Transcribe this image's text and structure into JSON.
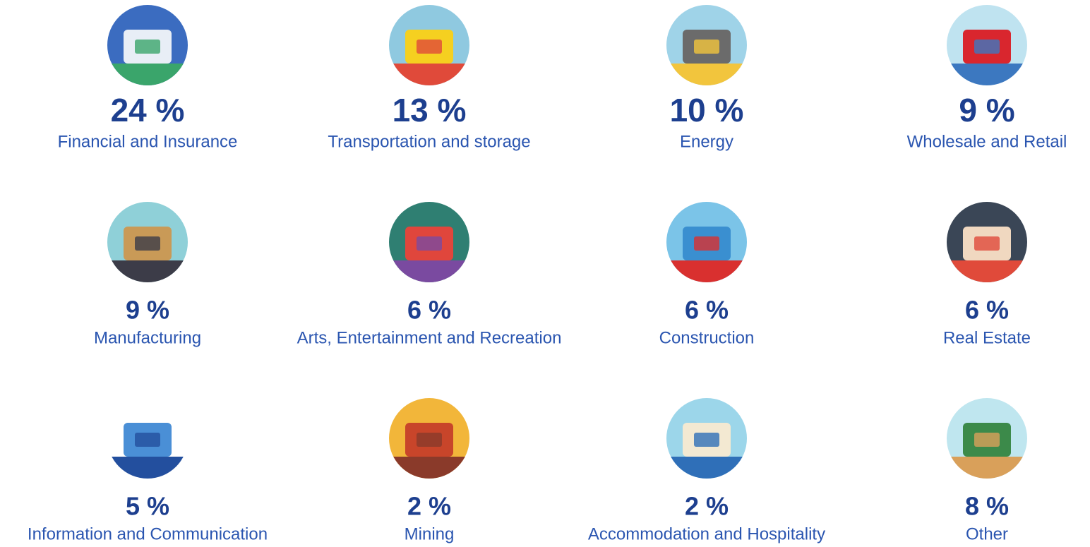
{
  "items": [
    {
      "percent": "24 %",
      "label": "Financial and Insurance"
    },
    {
      "percent": "13 %",
      "label": "Transportation and storage"
    },
    {
      "percent": "10 %",
      "label": "Energy"
    },
    {
      "percent": "9 %",
      "label": "Wholesale and Retail"
    },
    {
      "percent": "9 %",
      "label": "Manufacturing"
    },
    {
      "percent": "6 %",
      "label": "Arts, Entertainment and Recreation"
    },
    {
      "percent": "6 %",
      "label": "Construction"
    },
    {
      "percent": "6 %",
      "label": "Real Estate"
    },
    {
      "percent": "5 %",
      "label": "Information and Communication"
    },
    {
      "percent": "2 %",
      "label": "Mining"
    },
    {
      "percent": "2 %",
      "label": "Accommodation and Hospitality"
    },
    {
      "percent": "8 %",
      "label": "Other"
    }
  ]
}
